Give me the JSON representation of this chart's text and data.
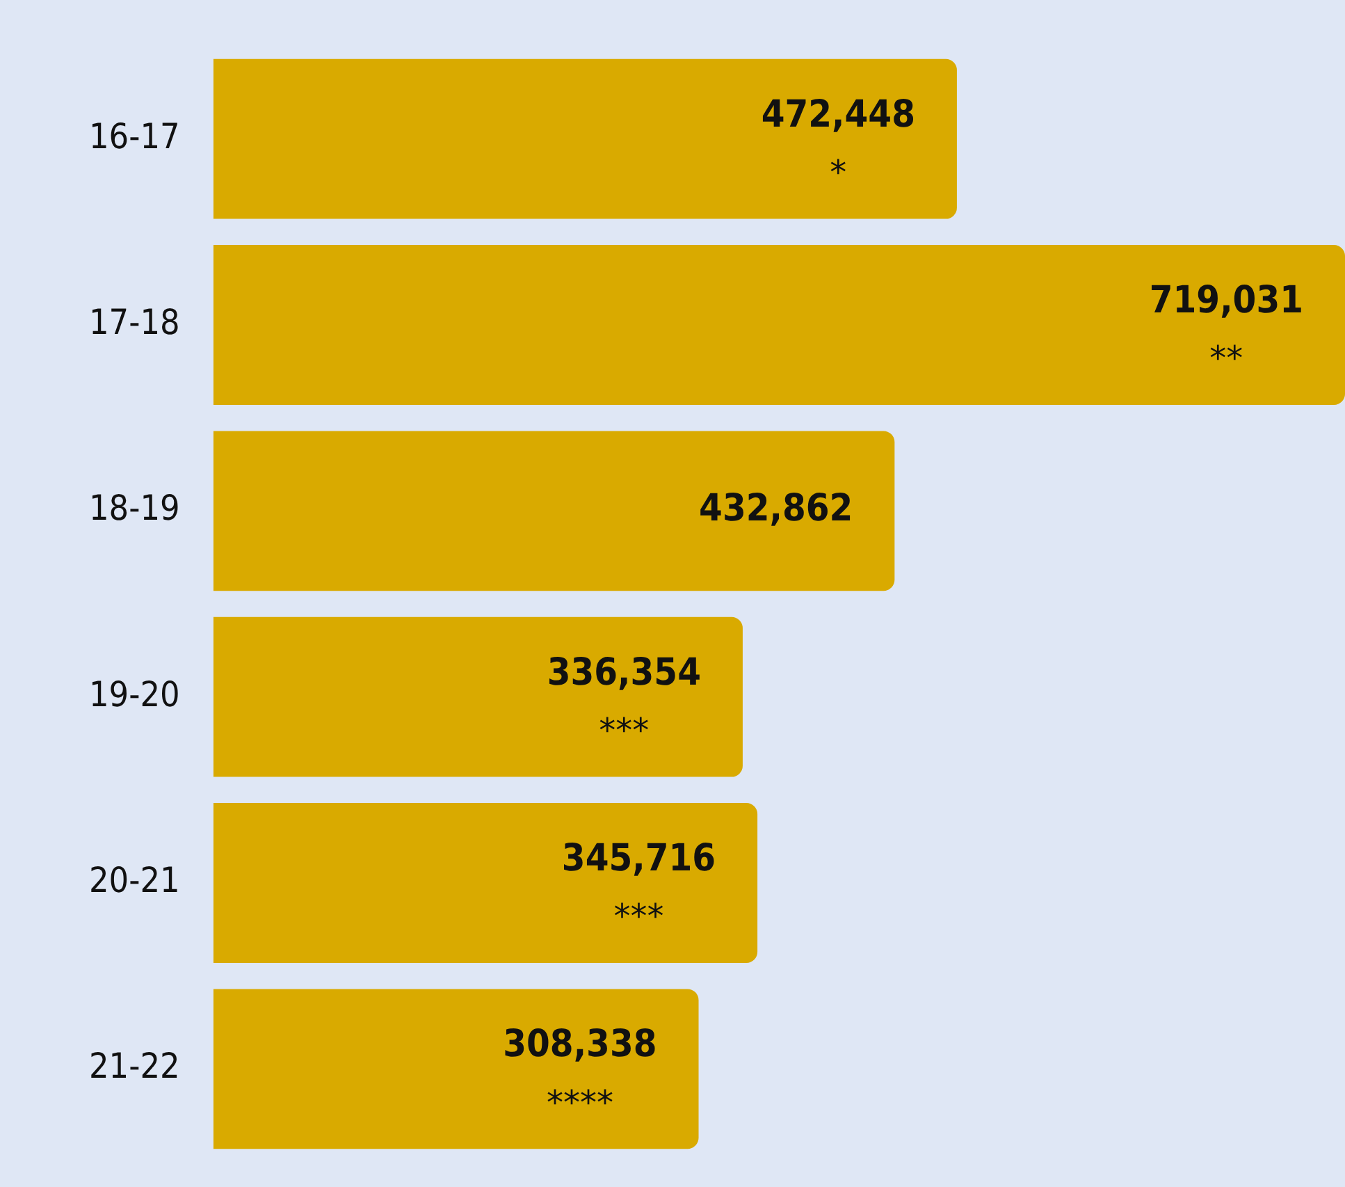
{
  "chart_data": {
    "type": "bar",
    "orientation": "horizontal",
    "categories": [
      "16-17",
      "17-18",
      "18-19",
      "19-20",
      "20-21",
      "21-22"
    ],
    "values": [
      472448,
      719031,
      432862,
      336354,
      345716,
      308338
    ],
    "color": "#d9aa00",
    "value_labels": [
      "472,448\n*",
      "719,031\n**",
      "432,862",
      "336,354\n***",
      "345,716\n***",
      "308,338\n****"
    ],
    "xlim": [
      0,
      719031
    ],
    "tick_labels": "y",
    "legend": false,
    "grid": false
  }
}
